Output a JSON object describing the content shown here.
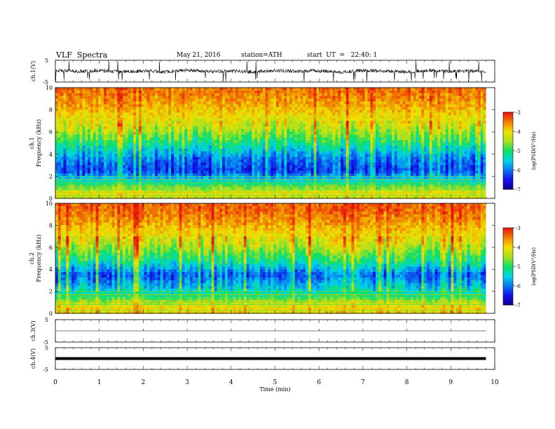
{
  "header": {
    "title": "VLF  Spectra",
    "date": "May 21, 2016",
    "station": "station=ATH",
    "start": "start  UT  =   22:40: 1"
  },
  "chart_data": [
    {
      "type": "line",
      "ylabel": "ch.1(V)",
      "ylim": [
        -5,
        5
      ],
      "yticks": [
        "5",
        "-5"
      ],
      "x": [
        0.0,
        0.5,
        1.0,
        1.5,
        2.0,
        2.5,
        3.0,
        3.5,
        4.0,
        4.5,
        5.0,
        5.5,
        6.0,
        6.5,
        7.0,
        7.5,
        8.0,
        8.5,
        9.0,
        9.5,
        9.8
      ],
      "values": [
        0.4,
        -0.1,
        0.3,
        -0.4,
        0.2,
        -0.3,
        0.5,
        -0.2,
        0.1,
        -0.4,
        0.3,
        -0.1,
        0.2,
        -0.5,
        0.3,
        0.0,
        -0.3,
        0.4,
        -0.2,
        0.1,
        -0.1
      ],
      "description_values": "noisy broadband waveform centred near 0 V, amplitude roughly +/-1 V with sparse spikes reaching about -5 V"
    },
    {
      "type": "heatmap",
      "name": "ch.1",
      "ylabel": "Frequency (kHz)",
      "channel_label": "ch.1",
      "ylim": [
        0,
        10
      ],
      "yticks": [
        "0",
        "2",
        "4",
        "6",
        "8",
        "10"
      ],
      "colorbar": {
        "label": "log(PSD(V²/Hz)",
        "range": [
          -7,
          -3
        ],
        "ticks": [
          "-3",
          "-4",
          "-5",
          "-6",
          "-7"
        ]
      },
      "freq_profile_kHz": [
        0.5,
        1.5,
        2.5,
        3.5,
        4.5,
        5.5,
        6.5,
        7.5,
        8.5,
        9.5
      ],
      "freq_profile_logPSD": [
        -4.2,
        -5.3,
        -6.3,
        -6.0,
        -5.4,
        -4.8,
        -4.3,
        -4.0,
        -3.7,
        -3.5
      ]
    },
    {
      "type": "heatmap",
      "name": "ch.2",
      "ylabel": "Frequency (kHz)",
      "channel_label": "ch.2",
      "ylim": [
        0,
        10
      ],
      "yticks": [
        "0",
        "2",
        "4",
        "6",
        "8",
        "10"
      ],
      "colorbar": {
        "label": "log(PSD(V²/Hz)",
        "range": [
          -7,
          -3
        ],
        "ticks": [
          "-3",
          "-4",
          "-5",
          "-6",
          "-7"
        ]
      },
      "freq_profile_kHz": [
        0.5,
        1.5,
        2.5,
        3.5,
        4.5,
        5.5,
        6.5,
        7.5,
        8.5,
        9.5
      ],
      "freq_profile_logPSD": [
        -4.0,
        -5.0,
        -5.6,
        -6.1,
        -5.3,
        -4.7,
        -4.2,
        -3.9,
        -3.6,
        -3.4
      ]
    },
    {
      "type": "line",
      "ylabel": "ch.3(V)",
      "ylim": [
        -5,
        5
      ],
      "yticks": [
        "5",
        "-5"
      ],
      "x": [
        0,
        9.8
      ],
      "values": [
        0,
        0
      ]
    },
    {
      "type": "line",
      "ylabel": "ch.4(V)",
      "ylim": [
        -5,
        5
      ],
      "yticks": [
        "5",
        "-5"
      ],
      "x": [
        0,
        9.8
      ],
      "values": [
        0,
        0
      ]
    }
  ],
  "xaxis": {
    "label": "Time  (min)",
    "range": [
      0,
      10
    ],
    "ticks": [
      "0",
      "1",
      "2",
      "3",
      "4",
      "5",
      "6",
      "7",
      "8",
      "9",
      "10"
    ]
  }
}
